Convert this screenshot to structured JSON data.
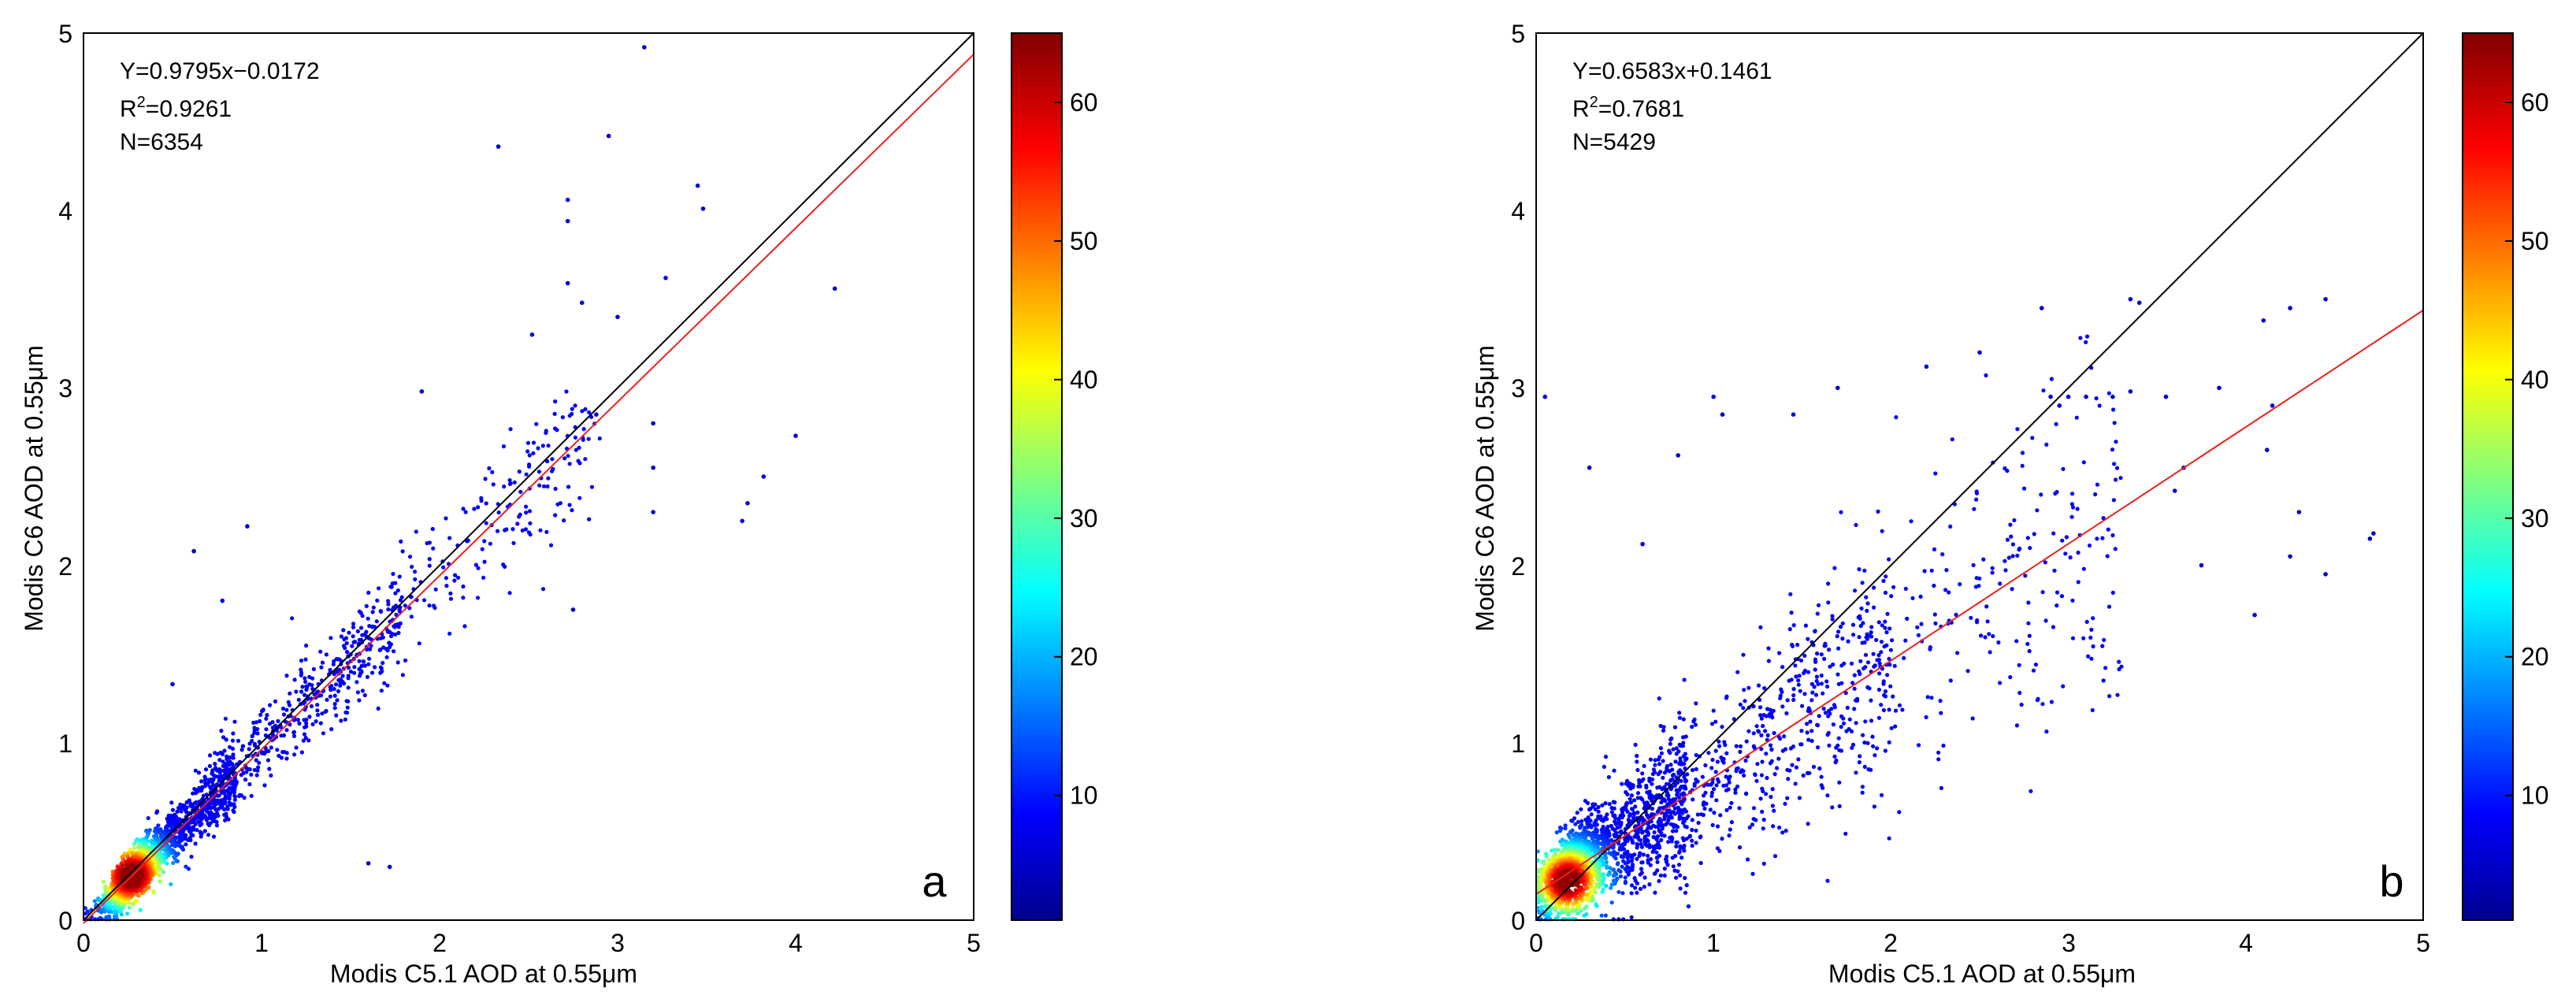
{
  "chart_data": [
    {
      "type": "scatter",
      "panel_label": "a",
      "xlabel_prefix": "Modis C5.1 AOD at 0.55",
      "ylabel_prefix": "Modis C6 AOD at 0.55",
      "unit": "μm",
      "xlim": [
        0,
        5
      ],
      "ylim": [
        0,
        5
      ],
      "xticks": [
        "0",
        "1",
        "2",
        "3",
        "4",
        "5"
      ],
      "yticks": [
        "0",
        "1",
        "2",
        "3",
        "4",
        "5"
      ],
      "regression": {
        "slope": 0.9795,
        "intercept": -0.0172,
        "color": "#e8231c"
      },
      "one_to_one": {
        "color": "#000000"
      },
      "stats": {
        "equation": "Y=0.9795x−0.0172",
        "r2_prefix": "R",
        "r2_sup": "2",
        "r2_value": "=0.9261",
        "n": "N=6354"
      },
      "colorbar": {
        "min": 1,
        "max": 65,
        "ticks": [
          "10",
          "20",
          "30",
          "40",
          "50",
          "60"
        ],
        "tick_values": [
          10,
          20,
          30,
          40,
          50,
          60
        ]
      },
      "density_core": {
        "cx": 0.27,
        "cy": 0.25
      },
      "cloud_model": "tight",
      "outliers": [
        [
          3.15,
          4.92
        ],
        [
          2.95,
          4.42
        ],
        [
          2.33,
          4.36
        ],
        [
          3.45,
          4.14
        ],
        [
          3.48,
          4.01
        ],
        [
          2.72,
          4.06
        ],
        [
          2.72,
          3.94
        ],
        [
          3.27,
          3.62
        ],
        [
          2.72,
          3.59
        ],
        [
          4.22,
          3.56
        ],
        [
          2.8,
          3.48
        ],
        [
          2.52,
          3.3
        ],
        [
          3.0,
          3.4
        ],
        [
          1.9,
          2.98
        ],
        [
          4.0,
          2.73
        ],
        [
          3.2,
          2.8
        ],
        [
          2.88,
          2.85
        ],
        [
          3.73,
          2.35
        ],
        [
          3.82,
          2.5
        ],
        [
          3.7,
          2.25
        ],
        [
          0.62,
          2.08
        ],
        [
          0.92,
          2.22
        ],
        [
          0.5,
          1.33
        ],
        [
          0.78,
          1.8
        ],
        [
          1.72,
          0.3
        ],
        [
          1.6,
          0.32
        ],
        [
          3.2,
          2.3
        ],
        [
          2.75,
          1.75
        ],
        [
          3.2,
          2.55
        ]
      ]
    },
    {
      "type": "scatter",
      "panel_label": "b",
      "xlabel_prefix": "Modis C5.1 AOD at 0.55",
      "ylabel_prefix": "Modis C6 AOD at 0.55",
      "unit": "μm",
      "xlim": [
        0,
        5
      ],
      "ylim": [
        0,
        5
      ],
      "xticks": [
        "0",
        "1",
        "2",
        "3",
        "4",
        "5"
      ],
      "yticks": [
        "0",
        "1",
        "2",
        "3",
        "4",
        "5"
      ],
      "regression": {
        "slope": 0.6583,
        "intercept": 0.1461,
        "color": "#e8231c"
      },
      "one_to_one": {
        "color": "#000000"
      },
      "stats": {
        "equation": "Y=0.6583x+0.1461",
        "r2_prefix": "R",
        "r2_sup": "2",
        "r2_value": "=0.7681",
        "n": "N=5429"
      },
      "colorbar": {
        "min": 1,
        "max": 65,
        "ticks": [
          "10",
          "20",
          "30",
          "40",
          "50",
          "60"
        ],
        "tick_values": [
          10,
          20,
          30,
          40,
          50,
          60
        ]
      },
      "density_core": {
        "cx": 0.18,
        "cy": 0.22
      },
      "cloud_model": "wide",
      "outliers": [
        [
          0.05,
          2.95
        ],
        [
          0.3,
          2.55
        ],
        [
          2.85,
          3.45
        ],
        [
          3.35,
          3.5
        ],
        [
          3.4,
          3.48
        ],
        [
          4.45,
          3.5
        ],
        [
          4.25,
          3.45
        ],
        [
          4.1,
          3.38
        ],
        [
          3.85,
          3.0
        ],
        [
          4.15,
          2.9
        ],
        [
          4.12,
          2.65
        ],
        [
          4.7,
          2.15
        ],
        [
          4.72,
          2.18
        ],
        [
          4.45,
          1.95
        ],
        [
          4.05,
          1.72
        ],
        [
          3.75,
          2.0
        ],
        [
          3.55,
          2.95
        ],
        [
          2.9,
          2.95
        ],
        [
          2.95,
          2.9
        ],
        [
          3.0,
          2.95
        ],
        [
          3.1,
          2.95
        ],
        [
          3.25,
          2.95
        ],
        [
          3.35,
          2.98
        ],
        [
          1.7,
          3.0
        ],
        [
          2.5,
          3.2
        ],
        [
          2.2,
          3.12
        ],
        [
          1.0,
          2.95
        ],
        [
          0.8,
          2.62
        ],
        [
          1.05,
          2.85
        ],
        [
          1.45,
          2.85
        ],
        [
          0.6,
          2.12
        ],
        [
          3.6,
          2.42
        ],
        [
          3.65,
          2.55
        ],
        [
          4.3,
          2.3
        ],
        [
          4.25,
          2.05
        ]
      ]
    }
  ]
}
